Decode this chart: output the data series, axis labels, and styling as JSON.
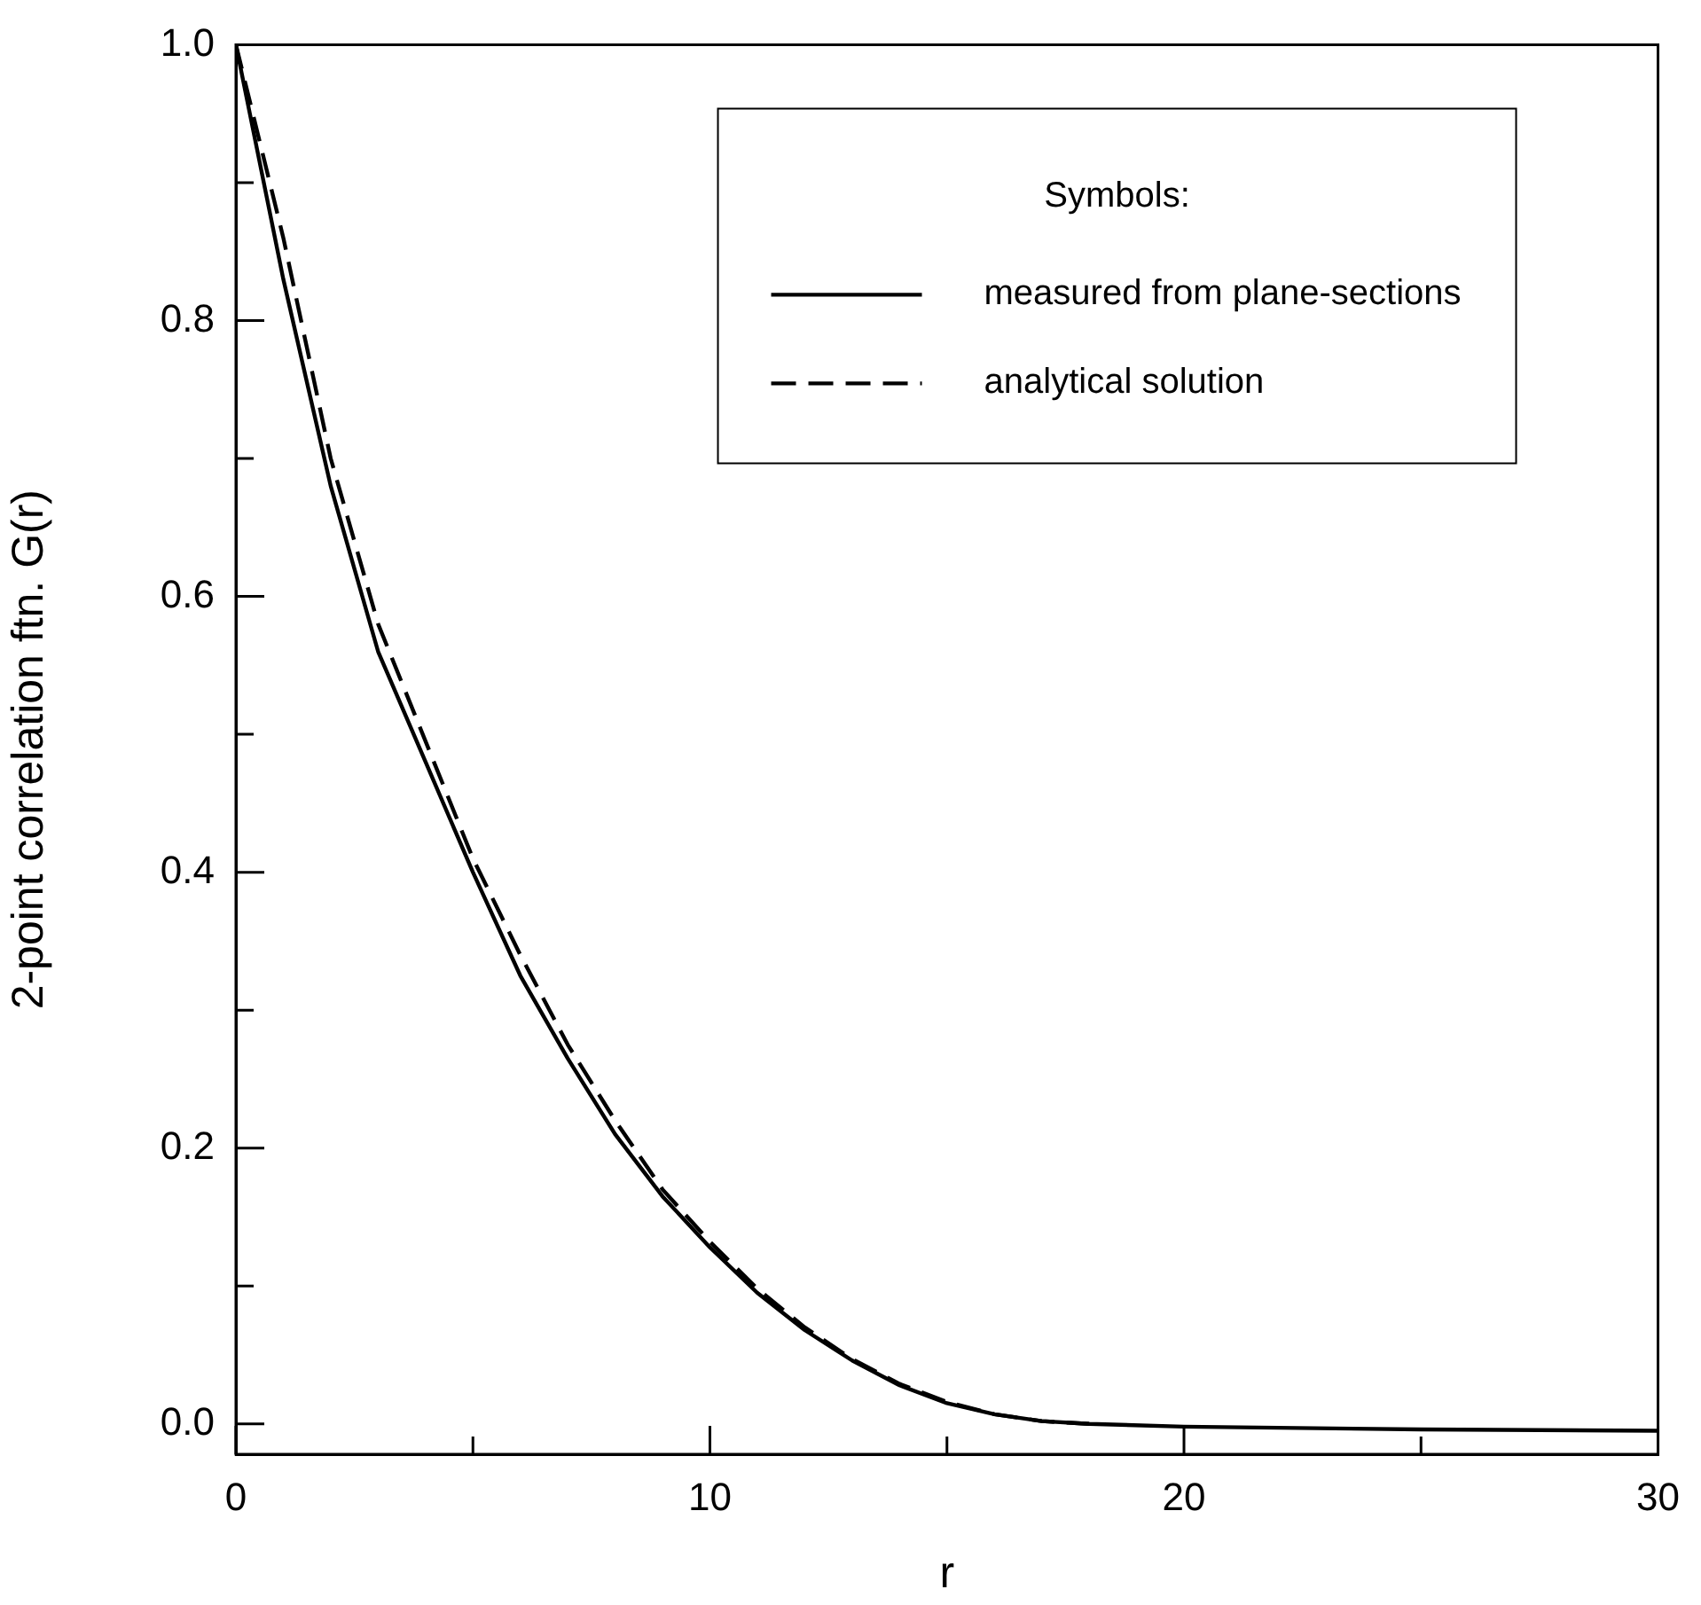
{
  "chart_data": {
    "type": "line",
    "xlabel": "r",
    "ylabel": "2-point correlation ftn. G(r)",
    "legend_title": "Symbols:",
    "legend": "top right",
    "grid": false,
    "marker": "none",
    "xlim": [
      0,
      30
    ],
    "ylim": [
      -0.022,
      1.0
    ],
    "xticks": [
      0,
      {
        "value": 5,
        "label": null
      },
      10,
      {
        "value": 15,
        "label": null
      },
      20,
      {
        "value": 25,
        "label": null
      },
      30
    ],
    "yticks": [
      {
        "value": 0,
        "label": "0.0"
      },
      {
        "value": 0.1,
        "label": null
      },
      0.2,
      {
        "value": 0.3,
        "label": null
      },
      0.4,
      {
        "value": 0.5,
        "label": null
      },
      0.6,
      {
        "value": 0.7,
        "label": null
      },
      0.8,
      {
        "value": 0.9,
        "label": null
      },
      {
        "value": 1,
        "label": "1.0"
      }
    ],
    "series": [
      {
        "name": "measured from plane-sections",
        "color": "#000000",
        "line_style": "solid",
        "x": [
          0,
          1,
          2,
          3,
          4,
          5,
          6,
          7,
          8,
          9,
          10,
          11,
          12,
          13,
          14,
          15,
          16,
          17,
          18,
          20,
          25,
          30
        ],
        "values": [
          1.0,
          0.83,
          0.68,
          0.56,
          0.48,
          0.4,
          0.325,
          0.265,
          0.21,
          0.165,
          0.128,
          0.095,
          0.068,
          0.046,
          0.028,
          0.015,
          0.007,
          0.002,
          0.0,
          -0.002,
          -0.004,
          -0.005
        ]
      },
      {
        "name": "analytical solution",
        "color": "#000000",
        "line_style": "dashed",
        "x": [
          0,
          1,
          2,
          3,
          4,
          5,
          6,
          7,
          8,
          9,
          10,
          11,
          12,
          13,
          14,
          15,
          16,
          17,
          18
        ],
        "values": [
          1.0,
          0.86,
          0.7,
          0.58,
          0.495,
          0.41,
          0.34,
          0.275,
          0.22,
          0.17,
          0.132,
          0.098,
          0.07,
          0.047,
          0.029,
          0.016,
          0.007,
          0.002,
          0.0
        ]
      }
    ]
  }
}
